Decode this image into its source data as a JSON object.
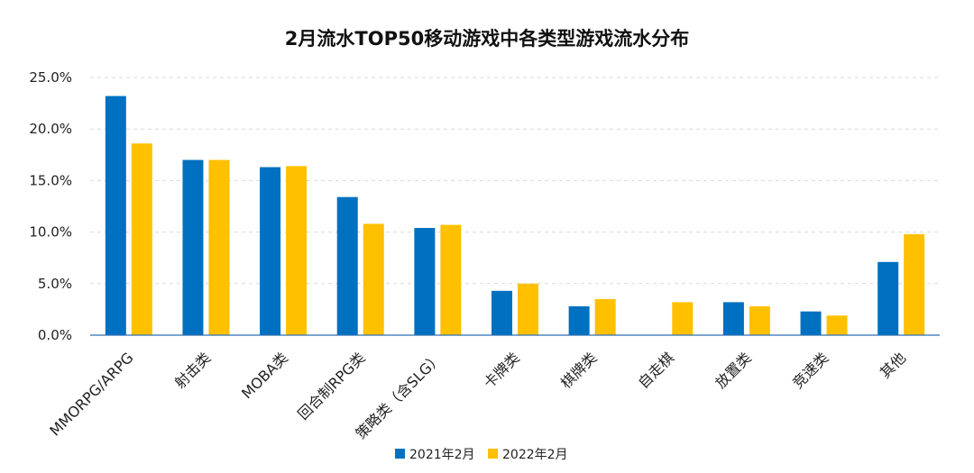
{
  "chart_data": {
    "type": "bar",
    "title": "2月流水TOP50移动游戏中各类型游戏流水分布",
    "xlabel": "",
    "ylabel": "",
    "ylim": [
      0,
      25
    ],
    "yticks": [
      "0.0%",
      "5.0%",
      "10.0%",
      "15.0%",
      "20.0%",
      "25.0%"
    ],
    "ytick_values": [
      0,
      5,
      10,
      15,
      20,
      25
    ],
    "grid": true,
    "legend_position": "bottom",
    "categories": [
      "MMORPG/ARPG",
      "射击类",
      "MOBA类",
      "回合制RPG类",
      "策略类（含SLG）",
      "卡牌类",
      "棋牌类",
      "自走棋",
      "放置类",
      "竞速类",
      "其他"
    ],
    "series": [
      {
        "name": "2021年2月",
        "color": "#0070c0",
        "values": [
          23.2,
          17.0,
          16.3,
          13.4,
          10.4,
          4.3,
          2.8,
          0,
          3.2,
          2.3,
          7.1
        ]
      },
      {
        "name": "2022年2月",
        "color": "#ffc000",
        "values": [
          18.6,
          17.0,
          16.4,
          10.8,
          10.7,
          5.0,
          3.5,
          3.2,
          2.8,
          1.9,
          9.8
        ]
      }
    ]
  }
}
